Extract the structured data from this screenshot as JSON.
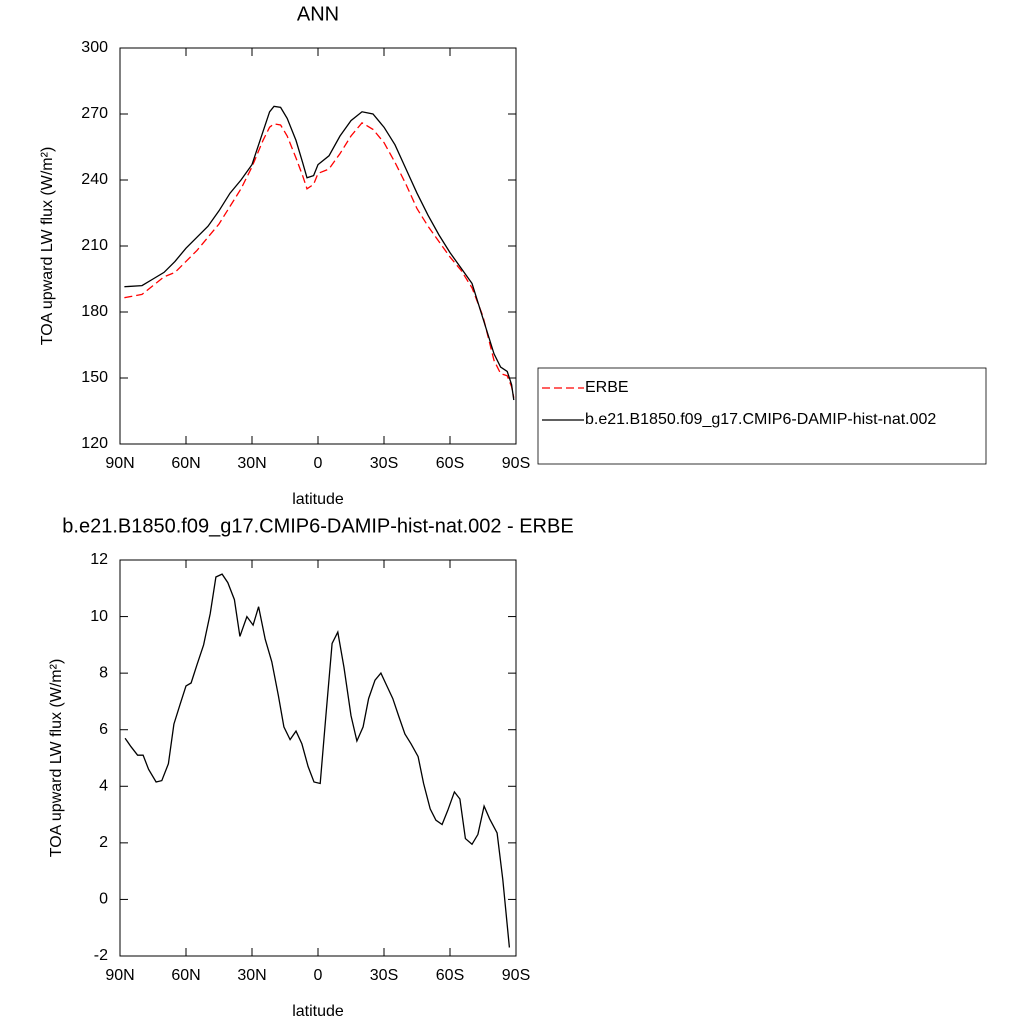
{
  "chart_data": [
    {
      "type": "line",
      "title": "ANN",
      "xlabel": "latitude",
      "ylabel": "TOA upward LW flux (W/m²)",
      "xlim": [
        90,
        -90
      ],
      "xticks": [
        {
          "value": 90,
          "label": "90N"
        },
        {
          "value": 60,
          "label": "60N"
        },
        {
          "value": 30,
          "label": "30N"
        },
        0,
        {
          "value": -30,
          "label": "30S"
        },
        {
          "value": -60,
          "label": "60S"
        },
        {
          "value": -90,
          "label": "90S"
        }
      ],
      "ylim": [
        120,
        300
      ],
      "yticks": [
        120,
        150,
        180,
        210,
        240,
        270,
        300
      ],
      "legend": "right",
      "x": [
        88,
        80,
        75,
        70,
        65,
        60,
        55,
        50,
        45,
        40,
        35,
        30,
        25,
        22,
        20,
        17,
        14,
        10,
        7,
        5,
        2,
        0,
        -5,
        -10,
        -15,
        -20,
        -25,
        -30,
        -35,
        -40,
        -45,
        -50,
        -55,
        -60,
        -65,
        -70,
        -75,
        -80,
        -83,
        -86,
        -88,
        -89
      ],
      "series": [
        {
          "name": "ERBE",
          "color": "#ff0000",
          "line_style": "dashed",
          "values": [
            186.5,
            188,
            192,
            196,
            198,
            203,
            208,
            214,
            220,
            228,
            236,
            246,
            258,
            264,
            265.5,
            265,
            260,
            250,
            242,
            236,
            238,
            243,
            245,
            252,
            260,
            266,
            263,
            257,
            248,
            238,
            227,
            219,
            212,
            205,
            199,
            191,
            178,
            158,
            152,
            151,
            146,
            141
          ]
        },
        {
          "name": "b.e21.B1850.f09_g17.CMIP6-DAMIP-hist-nat.002",
          "color": "#000000",
          "line_style": "solid",
          "values": [
            191.5,
            192,
            195,
            198,
            203,
            209,
            214,
            219,
            226,
            234,
            240,
            247,
            262,
            271,
            273.5,
            273,
            268,
            258,
            248,
            241,
            242,
            247,
            251,
            260,
            267,
            271,
            270,
            264,
            256,
            245,
            234,
            224,
            215,
            207,
            200,
            193,
            177,
            161,
            155,
            153,
            147,
            140
          ]
        }
      ]
    },
    {
      "type": "line",
      "title": "b.e21.B1850.f09_g17.CMIP6-DAMIP-hist-nat.002 - ERBE",
      "xlabel": "latitude",
      "ylabel": "TOA upward LW flux (W/m²)",
      "xlim": [
        90,
        -90
      ],
      "xticks": [
        {
          "value": 90,
          "label": "90N"
        },
        {
          "value": 60,
          "label": "60N"
        },
        {
          "value": 30,
          "label": "30N"
        },
        0,
        {
          "value": -30,
          "label": "30S"
        },
        {
          "value": -60,
          "label": "60S"
        },
        {
          "value": -90,
          "label": "90S"
        }
      ],
      "ylim": [
        -2,
        12
      ],
      "yticks": [
        -2,
        0,
        2,
        4,
        6,
        8,
        10,
        12
      ],
      "x": [
        87.7,
        85,
        82,
        79.5,
        77,
        73.6,
        71,
        68,
        65.5,
        62.7,
        60,
        57.7,
        55,
        52,
        49,
        46.4,
        43.6,
        41,
        38,
        35.5,
        32.3,
        29.5,
        27,
        24,
        21,
        18,
        15.5,
        12.7,
        10,
        7.3,
        4.5,
        1.8,
        -1,
        -3.6,
        -6.4,
        -9,
        -11.8,
        -15,
        -17.7,
        -20.5,
        -23,
        -25.9,
        -28.6,
        -31,
        -34,
        -36.8,
        -39.5,
        -42.3,
        -45.5,
        -48,
        -51,
        -53.6,
        -56.4,
        -59,
        -62,
        -64.5,
        -67,
        -70,
        -72.7,
        -75.5,
        -78,
        -81.4,
        -84,
        -87
      ],
      "series": [
        {
          "color": "#000000",
          "values": [
            5.7,
            5.4,
            5.1,
            5.1,
            4.6,
            4.15,
            4.2,
            4.8,
            6.2,
            6.9,
            7.55,
            7.65,
            8.3,
            9.0,
            10.1,
            11.4,
            11.5,
            11.2,
            10.6,
            9.3,
            10.0,
            9.7,
            10.35,
            9.2,
            8.4,
            7.2,
            6.1,
            5.65,
            5.95,
            5.5,
            4.7,
            4.15,
            4.1,
            6.5,
            9.05,
            9.45,
            8.2,
            6.5,
            5.6,
            6.1,
            7.1,
            7.75,
            8.0,
            7.6,
            7.1,
            6.45,
            5.85,
            5.5,
            5.05,
            4.1,
            3.2,
            2.8,
            2.65,
            3.15,
            3.8,
            3.55,
            2.15,
            1.95,
            2.3,
            3.3,
            2.85,
            2.35,
            0.7,
            -1.7
          ]
        }
      ]
    }
  ]
}
